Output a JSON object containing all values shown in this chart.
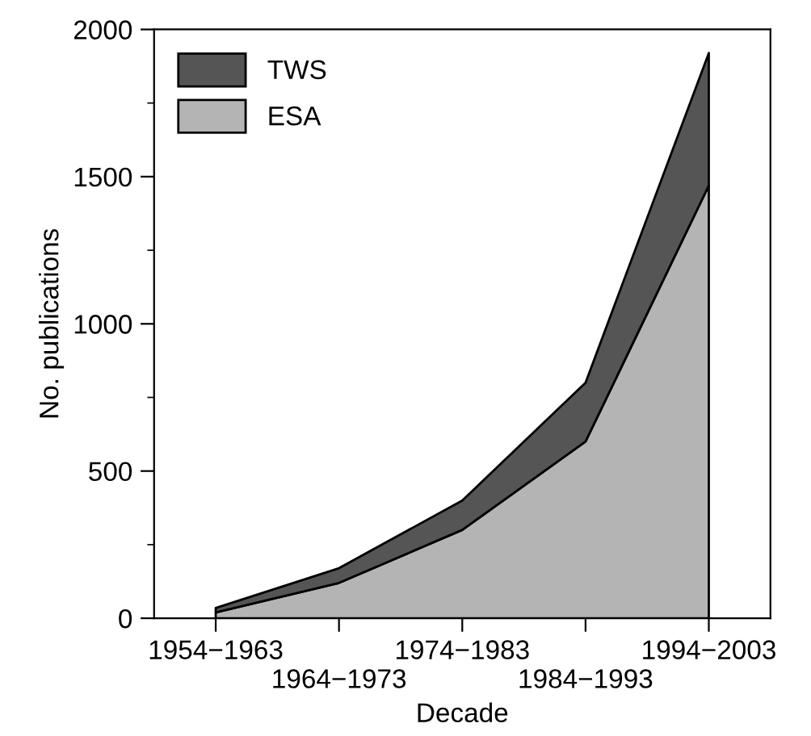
{
  "chart_data": {
    "type": "area",
    "stacked": true,
    "xlabel": "Decade",
    "ylabel": "No. publications",
    "categories": [
      "1954−1963",
      "1964−1973",
      "1974−1983",
      "1984−1993",
      "1994−2003"
    ],
    "series": [
      {
        "name": "ESA",
        "color": "#b4b4b4",
        "values": [
          20,
          120,
          300,
          600,
          1470
        ]
      },
      {
        "name": "TWS",
        "color": "#555555",
        "values": [
          15,
          50,
          100,
          200,
          450
        ]
      }
    ],
    "ylim": [
      0,
      2000
    ],
    "yticks": [
      0,
      500,
      1000,
      1500,
      2000
    ],
    "grid": false,
    "legend": "top left"
  }
}
